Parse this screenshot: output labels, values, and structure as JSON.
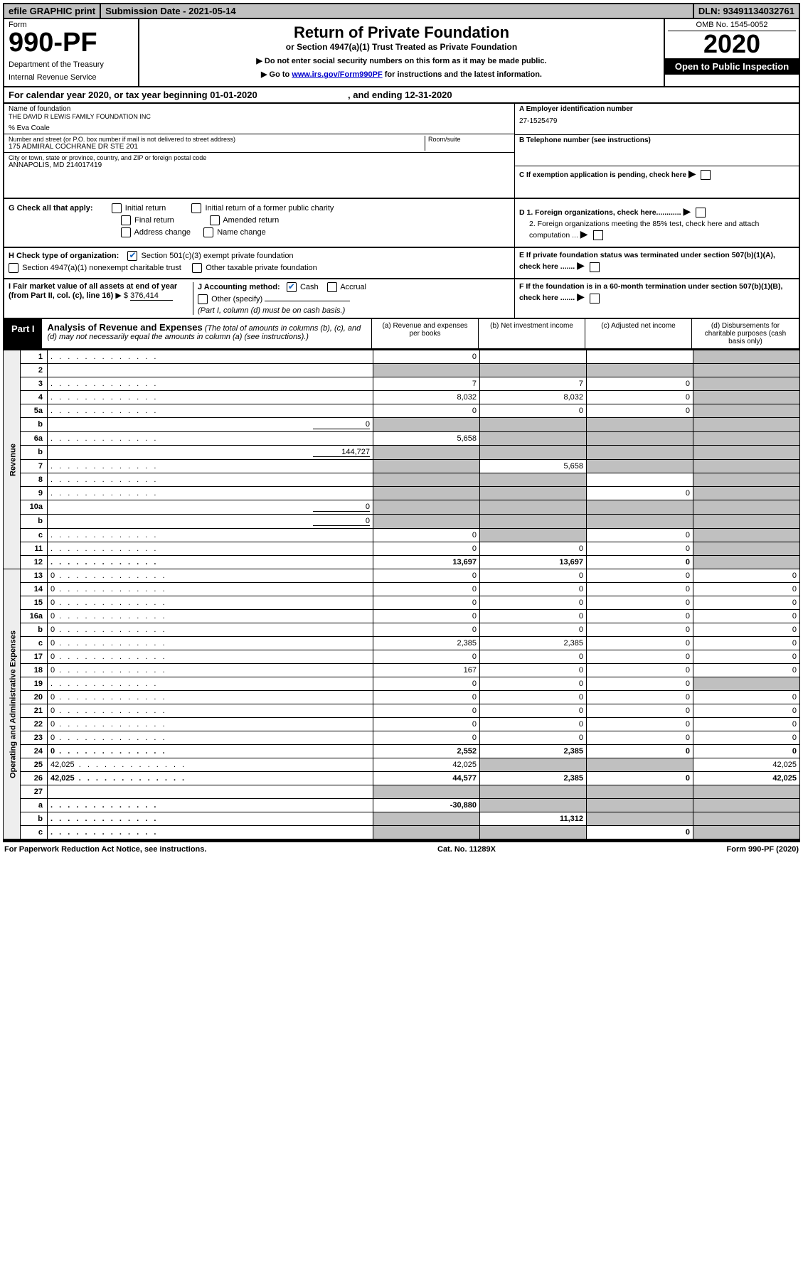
{
  "topbar": {
    "print": "efile GRAPHIC print",
    "submission": "Submission Date - 2021-05-14",
    "dln": "DLN: 93491134032761"
  },
  "header": {
    "form_label": "Form",
    "form_number": "990-PF",
    "dept1": "Department of the Treasury",
    "dept2": "Internal Revenue Service",
    "title": "Return of Private Foundation",
    "subtitle1": "or Section 4947(a)(1) Trust Treated as Private Foundation",
    "note1": "▶ Do not enter social security numbers on this form as it may be made public.",
    "note2_pre": "▶ Go to ",
    "note2_link": "www.irs.gov/Form990PF",
    "note2_post": " for instructions and the latest information.",
    "omb": "OMB No. 1545-0052",
    "year": "2020",
    "open": "Open to Public Inspection"
  },
  "calrow": {
    "text1": "For calendar year 2020, or tax year beginning 01-01-2020",
    "text2": ", and ending 12-31-2020"
  },
  "entity": {
    "name_lbl": "Name of foundation",
    "name": "THE DAVID R LEWIS FAMILY FOUNDATION INC",
    "co": "% Eva Coale",
    "addr_lbl": "Number and street (or P.O. box number if mail is not delivered to street address)",
    "room_lbl": "Room/suite",
    "addr": "175 ADMIRAL COCHRANE DR STE 201",
    "city_lbl": "City or town, state or province, country, and ZIP or foreign postal code",
    "city": "ANNAPOLIS, MD  214017419",
    "A_lbl": "A Employer identification number",
    "A_val": "27-1525479",
    "B_lbl": "B Telephone number (see instructions)",
    "C_lbl": "C If exemption application is pending, check here",
    "D1": "D 1. Foreign organizations, check here............",
    "D2": "2. Foreign organizations meeting the 85% test, check here and attach computation ...",
    "E": "E  If private foundation status was terminated under section 507(b)(1)(A), check here .......",
    "F": "F  If the foundation is in a 60-month termination under section 507(b)(1)(B), check here ......."
  },
  "G": {
    "label": "G Check all that apply:",
    "opts": [
      "Initial return",
      "Final return",
      "Address change",
      "Initial return of a former public charity",
      "Amended return",
      "Name change"
    ]
  },
  "H": {
    "label": "H Check type of organization:",
    "opt1": "Section 501(c)(3) exempt private foundation",
    "opt2": "Section 4947(a)(1) nonexempt charitable trust",
    "opt3": "Other taxable private foundation"
  },
  "I": {
    "label": "I Fair market value of all assets at end of year (from Part II, col. (c), line 16)",
    "val_lbl": "▶ $",
    "val": "376,414"
  },
  "J": {
    "label": "J Accounting method:",
    "cash": "Cash",
    "accrual": "Accrual",
    "other": "Other (specify)",
    "note": "(Part I, column (d) must be on cash basis.)"
  },
  "part1": {
    "tag": "Part I",
    "title": "Analysis of Revenue and Expenses",
    "sub": "(The total of amounts in columns (b), (c), and (d) may not necessarily equal the amounts in column (a) (see instructions).)",
    "col_a": "(a)   Revenue and expenses per books",
    "col_b": "(b)   Net investment income",
    "col_c": "(c)   Adjusted net income",
    "col_d": "(d)  Disbursements for charitable purposes (cash basis only)"
  },
  "side": {
    "rev": "Revenue",
    "exp": "Operating and Administrative Expenses"
  },
  "rows": [
    {
      "n": "1",
      "d": "",
      "a": "0",
      "b": "",
      "c": "",
      "dgray": true
    },
    {
      "n": "2",
      "d": "",
      "a": "",
      "b": "",
      "c": "",
      "agray": true,
      "bgray": true,
      "cgray": true,
      "dgray": true,
      "dotsoff": true
    },
    {
      "n": "3",
      "d": "",
      "a": "7",
      "b": "7",
      "c": "0",
      "dgray": true
    },
    {
      "n": "4",
      "d": "",
      "a": "8,032",
      "b": "8,032",
      "c": "0",
      "dgray": true
    },
    {
      "n": "5a",
      "d": "",
      "a": "0",
      "b": "0",
      "c": "0",
      "dgray": true
    },
    {
      "n": "b",
      "d": "",
      "a": "",
      "b": "",
      "c": "",
      "inline": "0",
      "agray": true,
      "bgray": true,
      "cgray": true,
      "dgray": true,
      "dotsoff": true
    },
    {
      "n": "6a",
      "d": "",
      "a": "5,658",
      "b": "",
      "c": "",
      "bgray": true,
      "cgray": true,
      "dgray": true
    },
    {
      "n": "b",
      "d": "",
      "a": "",
      "b": "",
      "c": "",
      "inline": "144,727",
      "agray": true,
      "bgray": true,
      "cgray": true,
      "dgray": true,
      "dotsoff": true
    },
    {
      "n": "7",
      "d": "",
      "a": "",
      "b": "5,658",
      "c": "",
      "agray": true,
      "cgray": true,
      "dgray": true
    },
    {
      "n": "8",
      "d": "",
      "a": "",
      "b": "",
      "c": "",
      "agray": true,
      "bgray": true,
      "dgray": true
    },
    {
      "n": "9",
      "d": "",
      "a": "",
      "b": "",
      "c": "0",
      "agray": true,
      "bgray": true,
      "dgray": true
    },
    {
      "n": "10a",
      "d": "",
      "a": "",
      "b": "",
      "c": "",
      "inline": "0",
      "agray": true,
      "bgray": true,
      "cgray": true,
      "dgray": true,
      "dotsoff": true
    },
    {
      "n": "b",
      "d": "",
      "a": "",
      "b": "",
      "c": "",
      "inline": "0",
      "agray": true,
      "bgray": true,
      "cgray": true,
      "dgray": true,
      "dotsoff": true
    },
    {
      "n": "c",
      "d": "",
      "a": "0",
      "b": "",
      "c": "0",
      "bgray": true,
      "dgray": true
    },
    {
      "n": "11",
      "d": "",
      "a": "0",
      "b": "0",
      "c": "0",
      "dgray": true
    },
    {
      "n": "12",
      "d": "",
      "a": "13,697",
      "b": "13,697",
      "c": "0",
      "dgray": true,
      "bold": true
    },
    {
      "n": "13",
      "d": "0",
      "a": "0",
      "b": "0",
      "c": "0"
    },
    {
      "n": "14",
      "d": "0",
      "a": "0",
      "b": "0",
      "c": "0"
    },
    {
      "n": "15",
      "d": "0",
      "a": "0",
      "b": "0",
      "c": "0"
    },
    {
      "n": "16a",
      "d": "0",
      "a": "0",
      "b": "0",
      "c": "0"
    },
    {
      "n": "b",
      "d": "0",
      "a": "0",
      "b": "0",
      "c": "0"
    },
    {
      "n": "c",
      "d": "0",
      "a": "2,385",
      "b": "2,385",
      "c": "0"
    },
    {
      "n": "17",
      "d": "0",
      "a": "0",
      "b": "0",
      "c": "0"
    },
    {
      "n": "18",
      "d": "0",
      "a": "167",
      "b": "0",
      "c": "0"
    },
    {
      "n": "19",
      "d": "",
      "a": "0",
      "b": "0",
      "c": "0",
      "dgray": true
    },
    {
      "n": "20",
      "d": "0",
      "a": "0",
      "b": "0",
      "c": "0"
    },
    {
      "n": "21",
      "d": "0",
      "a": "0",
      "b": "0",
      "c": "0"
    },
    {
      "n": "22",
      "d": "0",
      "a": "0",
      "b": "0",
      "c": "0"
    },
    {
      "n": "23",
      "d": "0",
      "a": "0",
      "b": "0",
      "c": "0"
    },
    {
      "n": "24",
      "d": "0",
      "a": "2,552",
      "b": "2,385",
      "c": "0",
      "bold": true
    },
    {
      "n": "25",
      "d": "42,025",
      "a": "42,025",
      "b": "",
      "c": "",
      "bgray": true,
      "cgray": true
    },
    {
      "n": "26",
      "d": "42,025",
      "a": "44,577",
      "b": "2,385",
      "c": "0",
      "bold": true
    },
    {
      "n": "27",
      "d": "",
      "a": "",
      "b": "",
      "c": "",
      "agray": true,
      "bgray": true,
      "cgray": true,
      "dgray": true,
      "dotsoff": true
    },
    {
      "n": "a",
      "d": "",
      "a": "-30,880",
      "b": "",
      "c": "",
      "bgray": true,
      "cgray": true,
      "dgray": true,
      "bold": true
    },
    {
      "n": "b",
      "d": "",
      "a": "",
      "b": "11,312",
      "c": "",
      "agray": true,
      "cgray": true,
      "dgray": true,
      "bold": true
    },
    {
      "n": "c",
      "d": "",
      "a": "",
      "b": "",
      "c": "0",
      "agray": true,
      "bgray": true,
      "dgray": true,
      "bold": true
    }
  ],
  "footer": {
    "left": "For Paperwork Reduction Act Notice, see instructions.",
    "mid": "Cat. No. 11289X",
    "right": "Form 990-PF (2020)"
  }
}
